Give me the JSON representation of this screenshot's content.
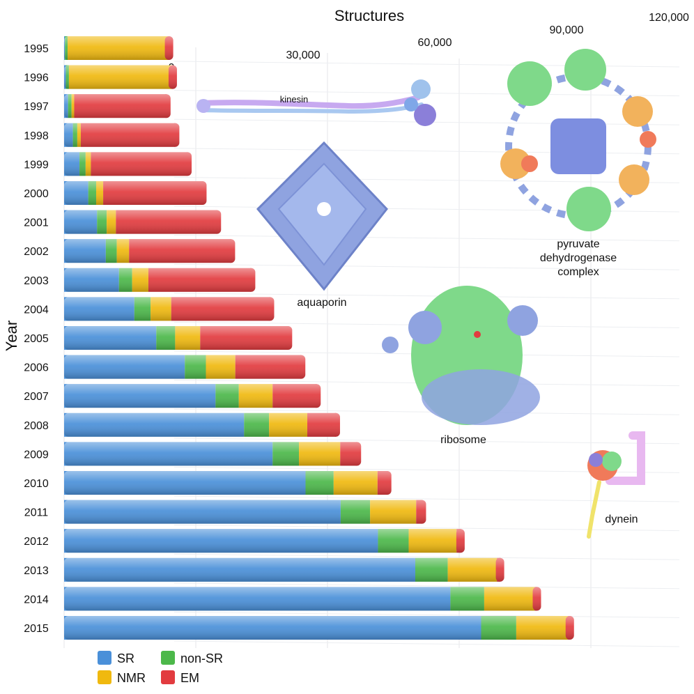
{
  "chart_data": {
    "type": "bar",
    "stacked": true,
    "orientation": "horizontal",
    "title": "",
    "xlabel": "Structures",
    "ylabel": "Year",
    "xlim": [
      0,
      120000
    ],
    "x_ticks": [
      "0",
      "30,000",
      "60,000",
      "90,000",
      "120,000"
    ],
    "x_tick_values": [
      0,
      30000,
      60000,
      90000,
      120000
    ],
    "categories": [
      "1995",
      "1996",
      "1997",
      "1998",
      "1999",
      "2000",
      "2001",
      "2002",
      "2003",
      "2004",
      "2005",
      "2006",
      "2007",
      "2008",
      "2009",
      "2010",
      "2011",
      "2012",
      "2013",
      "2014",
      "2015"
    ],
    "series": [
      {
        "name": "SR",
        "color": "#4a90d9",
        "values": [
          200,
          400,
          900,
          2000,
          3500,
          5500,
          7500,
          9500,
          12500,
          16000,
          21000,
          27500,
          34500,
          41000,
          47500,
          55000,
          63000,
          71500,
          80000,
          88000,
          95000
        ]
      },
      {
        "name": "non-SR",
        "color": "#4cb84a",
        "values": [
          600,
          700,
          800,
          1000,
          1400,
          1800,
          2200,
          2500,
          3000,
          3700,
          4300,
          4800,
          5300,
          5700,
          6000,
          6400,
          6700,
          7000,
          7400,
          7700,
          8000
        ]
      },
      {
        "name": "NMR",
        "color": "#f0b90f",
        "values": [
          23000,
          23500,
          600,
          800,
          1200,
          1600,
          2100,
          2800,
          3700,
          4700,
          5700,
          6700,
          7700,
          8700,
          9400,
          10000,
          10500,
          10900,
          11200,
          11500,
          11800
        ]
      },
      {
        "name": "EM",
        "color": "#e23b3f",
        "values": [
          100,
          150,
          21000,
          21500,
          22000,
          22600,
          23000,
          23200,
          23400,
          22500,
          20000,
          15000,
          10000,
          6500,
          3800,
          2200,
          1300,
          900,
          700,
          500,
          400
        ]
      }
    ],
    "legend": "bottom-left",
    "grid": true,
    "annotations": [
      "kinesin",
      "aquaporin",
      "pyruvate dehydrogenase complex",
      "ribosome",
      "dynein"
    ]
  },
  "legend_items": [
    {
      "label": "SR",
      "color": "#4a90d9"
    },
    {
      "label": "non-SR",
      "color": "#4cb84a"
    },
    {
      "label": "NMR",
      "color": "#f0b90f"
    },
    {
      "label": "EM",
      "color": "#e23b3f"
    }
  ],
  "molecules": {
    "kinesin": "kinesin",
    "aquaporin": "aquaporin",
    "pdc_line1": "pyruvate",
    "pdc_line2": "dehydrogenase",
    "pdc_line3": "complex",
    "ribosome": "ribosome",
    "dynein": "dynein"
  },
  "colors": {
    "sr": "#4a90d9",
    "non_sr": "#4cb84a",
    "nmr": "#f0b90f",
    "em": "#e23b3f",
    "molecule_blue": "#8fa3e0",
    "molecule_green": "#7fd98a",
    "molecule_orange": "#f2b25c",
    "molecule_violet": "#c7a9f0"
  }
}
